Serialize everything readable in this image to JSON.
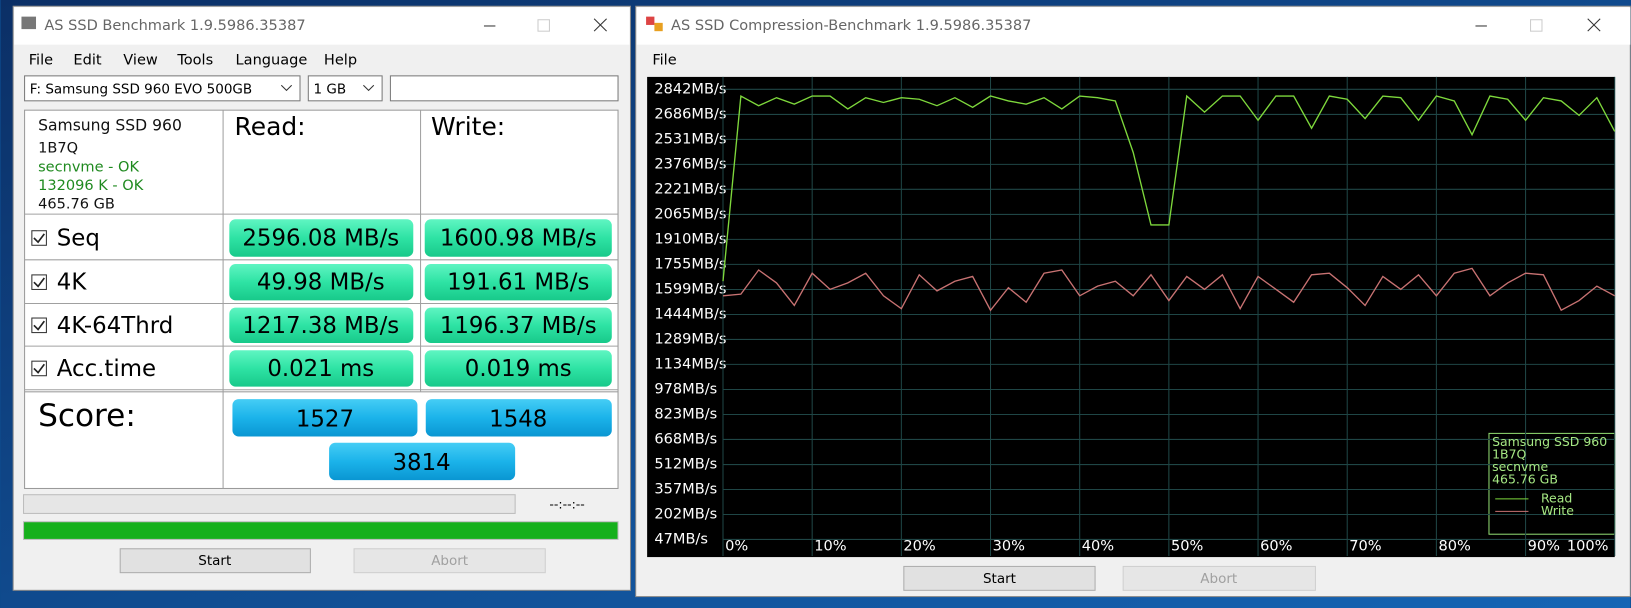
{
  "left_window": {
    "title": "AS SSD Benchmark 1.9.5986.35387",
    "menu": [
      "File",
      "Edit",
      "View",
      "Tools",
      "Language",
      "Help"
    ],
    "drive_select": "F: Samsung SSD 960 EVO 500GB",
    "size_select": "1 GB",
    "info": [
      "Samsung SSD 960",
      "1B7Q",
      "secnvme - OK",
      "132096 K - OK",
      "465.76 GB"
    ],
    "read_header": "Read:",
    "write_header": "Write:",
    "rows": [
      {
        "label": "Seq",
        "read": "2596.08 MB/s",
        "write": "1600.98 MB/s"
      },
      {
        "label": "4K",
        "read": "49.98 MB/s",
        "write": "191.61 MB/s"
      },
      {
        "label": "4K-64Thrd",
        "read": "1217.38 MB/s",
        "write": "1196.37 MB/s"
      },
      {
        "label": "Acc.time",
        "read": "0.021 ms",
        "write": "0.019 ms"
      }
    ],
    "score_label": "Score:",
    "score_read": "1527",
    "score_write": "1548",
    "score_total": "3814",
    "time": "--:--:--",
    "buttons": [
      "Start",
      "Abort"
    ]
  },
  "right_window": {
    "title": "AS SSD Compression-Benchmark 1.9.5986.35387",
    "menu": [
      "File"
    ],
    "buttons": [
      "Start",
      "Abort"
    ]
  },
  "chart_data": {
    "type": "line",
    "x": [
      0,
      2,
      4,
      6,
      8,
      10,
      12,
      14,
      16,
      18,
      20,
      22,
      24,
      26,
      28,
      30,
      32,
      34,
      36,
      38,
      40,
      42,
      44,
      46,
      48,
      50,
      52,
      54,
      56,
      58,
      60,
      62,
      64,
      66,
      68,
      70,
      72,
      74,
      76,
      78,
      80,
      82,
      84,
      86,
      88,
      90,
      92,
      94,
      96,
      98,
      100
    ],
    "series": [
      {
        "name": "Read",
        "color": "#7ed83c",
        "values": [
          1650,
          2800,
          2740,
          2790,
          2750,
          2800,
          2800,
          2720,
          2790,
          2760,
          2790,
          2780,
          2740,
          2790,
          2730,
          2800,
          2770,
          2750,
          2790,
          2720,
          2800,
          2790,
          2770,
          2450,
          2000,
          2000,
          2800,
          2700,
          2800,
          2800,
          2650,
          2800,
          2800,
          2600,
          2800,
          2780,
          2660,
          2800,
          2790,
          2650,
          2800,
          2770,
          2560,
          2800,
          2780,
          2650,
          2790,
          2770,
          2680,
          2790,
          2580
        ]
      },
      {
        "name": "Write",
        "color": "#c87272",
        "values": [
          1560,
          1570,
          1720,
          1640,
          1500,
          1700,
          1600,
          1640,
          1700,
          1560,
          1480,
          1690,
          1590,
          1650,
          1680,
          1470,
          1610,
          1520,
          1700,
          1720,
          1560,
          1620,
          1650,
          1560,
          1690,
          1530,
          1680,
          1600,
          1690,
          1480,
          1680,
          1600,
          1520,
          1690,
          1700,
          1610,
          1500,
          1680,
          1600,
          1690,
          1560,
          1700,
          1730,
          1560,
          1640,
          1700,
          1690,
          1470,
          1530,
          1620,
          1560
        ]
      }
    ],
    "xlim": [
      0,
      100
    ],
    "xticks": [
      {
        "value": 0,
        "label": "0%"
      },
      {
        "value": 10,
        "label": "10%"
      },
      {
        "value": 20,
        "label": "20%"
      },
      {
        "value": 30,
        "label": "30%"
      },
      {
        "value": 40,
        "label": "40%"
      },
      {
        "value": 50,
        "label": "50%"
      },
      {
        "value": 60,
        "label": "60%"
      },
      {
        "value": 70,
        "label": "70%"
      },
      {
        "value": 80,
        "label": "80%"
      },
      {
        "value": 90,
        "label": "90%"
      },
      {
        "value": 100,
        "label": "100%"
      }
    ],
    "ylim": [
      -56,
      2919
    ],
    "yticks": [
      {
        "value": 2842,
        "label": "2842MB/s"
      },
      {
        "value": 2686,
        "label": "2686MB/s"
      },
      {
        "value": 2531,
        "label": "2531MB/s"
      },
      {
        "value": 2376,
        "label": "2376MB/s"
      },
      {
        "value": 2221,
        "label": "2221MB/s"
      },
      {
        "value": 2065,
        "label": "2065MB/s"
      },
      {
        "value": 1910,
        "label": "1910MB/s"
      },
      {
        "value": 1755,
        "label": "1755MB/s"
      },
      {
        "value": 1599,
        "label": "1599MB/s"
      },
      {
        "value": 1444,
        "label": "1444MB/s"
      },
      {
        "value": 1289,
        "label": "1289MB/s"
      },
      {
        "value": 1134,
        "label": "1134MB/s"
      },
      {
        "value": 978,
        "label": "978MB/s"
      },
      {
        "value": 823,
        "label": "823MB/s"
      },
      {
        "value": 668,
        "label": "668MB/s"
      },
      {
        "value": 512,
        "label": "512MB/s"
      },
      {
        "value": 357,
        "label": "357MB/s"
      },
      {
        "value": 202,
        "label": "202MB/s"
      },
      {
        "value": 47,
        "label": "47MB/s"
      }
    ],
    "grid": true,
    "legend": "bottom-right",
    "legend_info": [
      "Samsung SSD 960",
      "1B7Q",
      "secnvme",
      "465.76 GB"
    ]
  }
}
